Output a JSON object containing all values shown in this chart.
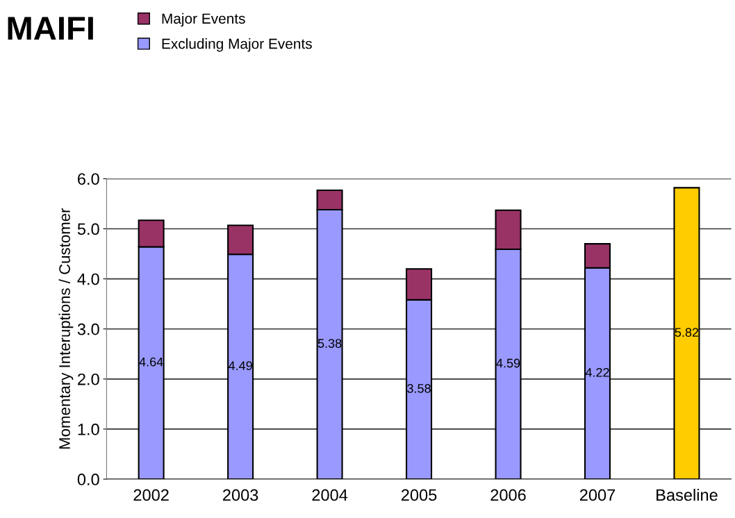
{
  "chart_data": {
    "type": "bar",
    "title": "MAIFI",
    "ylabel": "Momentary Interuptions / Customer",
    "categories": [
      "2002",
      "2003",
      "2004",
      "2005",
      "2006",
      "2007",
      "Baseline"
    ],
    "stacked": true,
    "series": [
      {
        "name": "Excluding Major Events",
        "color": "#9999ff",
        "values": [
          4.64,
          4.49,
          5.38,
          3.58,
          4.59,
          4.22,
          null
        ],
        "value_labels": [
          "4.64",
          "4.49",
          "5.38",
          "3.58",
          "4.59",
          "4.22",
          null
        ]
      },
      {
        "name": "Major Events",
        "color": "#993366",
        "values": [
          0.53,
          0.58,
          0.39,
          0.62,
          0.78,
          0.48,
          null
        ]
      },
      {
        "color": "#ffcc00",
        "values": [
          null,
          null,
          null,
          null,
          null,
          null,
          5.82
        ],
        "value_labels": [
          null,
          null,
          null,
          null,
          null,
          null,
          "5.82"
        ]
      }
    ],
    "ylim": [
      0,
      6
    ],
    "yticks": [
      {
        "value": 0,
        "label": "0.0"
      },
      {
        "value": 1,
        "label": "1.0"
      },
      {
        "value": 2,
        "label": "2.0"
      },
      {
        "value": 3,
        "label": "3.0"
      },
      {
        "value": 4,
        "label": "4.0"
      },
      {
        "value": 5,
        "label": "5.0"
      },
      {
        "value": 6,
        "label": "6.0"
      }
    ],
    "grid": "y",
    "legend": "top left"
  }
}
